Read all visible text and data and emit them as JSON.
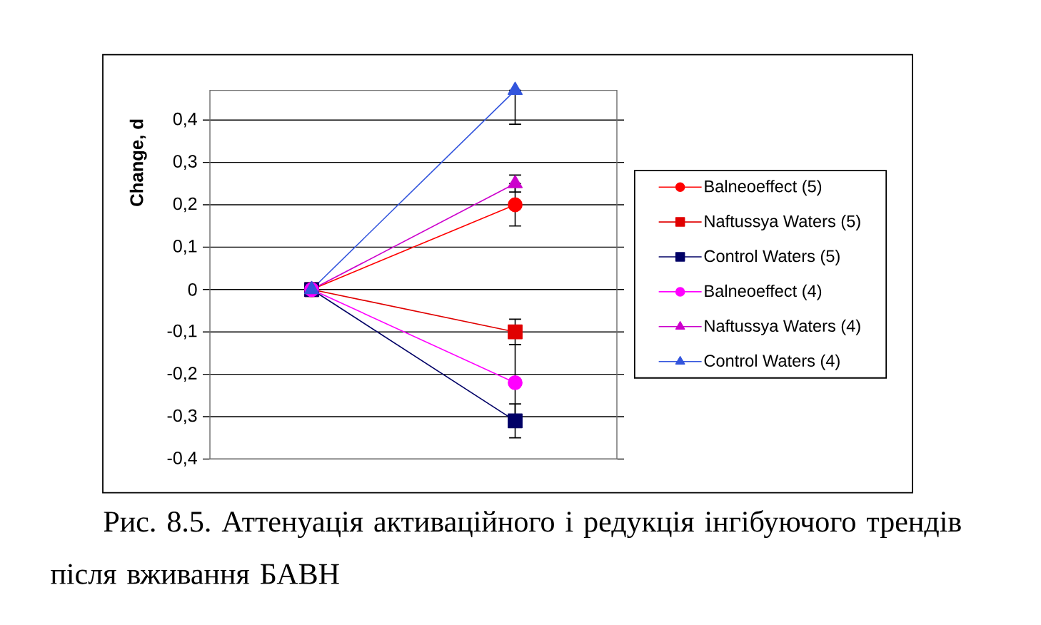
{
  "chart_data": {
    "type": "line",
    "ylabel": "Change, d",
    "categories": [
      null,
      null
    ],
    "ylim": [
      -0.4,
      0.47
    ],
    "yticks": [
      {
        "value": -0.4,
        "label": "-0,4"
      },
      {
        "value": -0.3,
        "label": "-0,3"
      },
      {
        "value": -0.2,
        "label": "-0,2"
      },
      {
        "value": -0.1,
        "label": "-0,1"
      },
      0,
      {
        "value": 0.1,
        "label": "0,1"
      },
      {
        "value": 0.2,
        "label": "0,2"
      },
      {
        "value": 0.3,
        "label": "0,3"
      },
      {
        "value": 0.4,
        "label": "0,4"
      }
    ],
    "grid": "y",
    "legend": "right",
    "tick_labels": "y",
    "series": [
      {
        "name": "Balneoeffect (5)",
        "color": "#ff0000",
        "marker": "circle",
        "values": [
          0,
          0.2
        ],
        "errors": [
          null,
          0.05
        ]
      },
      {
        "name": "Naftussya Waters (5)",
        "color": "#e00000",
        "marker": "square",
        "values": [
          0,
          -0.1
        ],
        "errors": [
          null,
          0.03
        ]
      },
      {
        "name": "Control Waters (5)",
        "color": "#000066",
        "marker": "square",
        "values": [
          0,
          -0.31
        ],
        "errors": [
          null,
          0.04
        ]
      },
      {
        "name": "Balneoeffect (4)",
        "color": "#ff00ff",
        "marker": "circle",
        "values": [
          0,
          -0.22
        ],
        "errors": [
          null,
          0.09
        ]
      },
      {
        "name": "Naftussya Waters (4)",
        "color": "#cc00cc",
        "marker": "triangle",
        "values": [
          0,
          0.25
        ],
        "errors": [
          null,
          0.02
        ]
      },
      {
        "name": "Control Waters (4)",
        "color": "#3355dd",
        "marker": "triangle",
        "values": [
          0,
          0.47
        ],
        "errors": [
          null,
          [
            0.39,
            0.47
          ]
        ]
      }
    ],
    "annotations": [
      "Рис. 8.5. Аттенуація активаційного і редукція інгібуючого трендів після вживання БАВН"
    ]
  }
}
